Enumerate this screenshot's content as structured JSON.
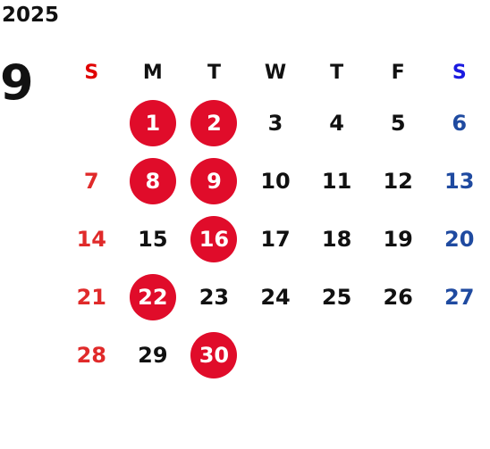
{
  "year": "2025",
  "month": "9",
  "colors": {
    "sunday": "#e02a2a",
    "saturday": "#1f4aa0",
    "highlight": "#e00c2a"
  },
  "weekdays": [
    "S",
    "M",
    "T",
    "W",
    "T",
    "F",
    "S"
  ],
  "weeks": [
    [
      "",
      "1",
      "2",
      "3",
      "4",
      "5",
      "6"
    ],
    [
      "7",
      "8",
      "9",
      "10",
      "11",
      "12",
      "13"
    ],
    [
      "14",
      "15",
      "16",
      "17",
      "18",
      "19",
      "20"
    ],
    [
      "21",
      "22",
      "23",
      "24",
      "25",
      "26",
      "27"
    ],
    [
      "28",
      "29",
      "30",
      "",
      "",
      "",
      ""
    ]
  ],
  "highlighted_days": [
    "1",
    "2",
    "8",
    "9",
    "16",
    "22",
    "30"
  ]
}
